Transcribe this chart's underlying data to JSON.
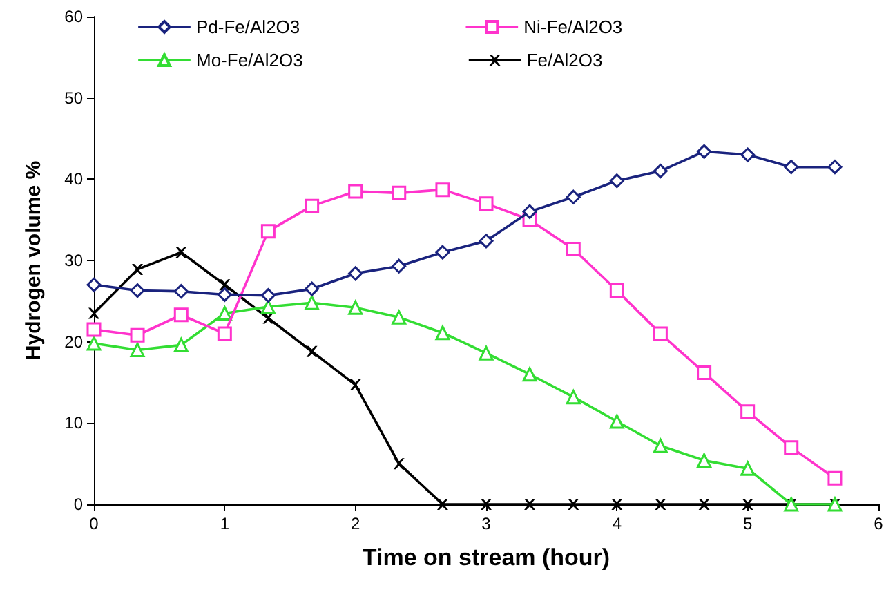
{
  "chart_data": {
    "type": "line",
    "xlabel": "Time on stream (hour)",
    "ylabel": "Hydrogen volume %",
    "x": [
      0,
      0.333,
      0.667,
      1,
      1.333,
      1.667,
      2,
      2.333,
      2.667,
      3,
      3.333,
      3.667,
      4,
      4.333,
      4.667,
      5,
      5.333,
      5.667
    ],
    "xlim": [
      0,
      6
    ],
    "xticks": [
      0,
      1,
      2,
      3,
      4,
      5,
      6
    ],
    "ylim": [
      0,
      60
    ],
    "yticks": [
      0,
      10,
      20,
      30,
      40,
      50,
      60
    ],
    "grid": false,
    "legend": "top",
    "series": [
      {
        "name": "Pd-Fe/Al2O3",
        "color": "#1a237e",
        "marker": "diamond",
        "values": [
          27,
          26.3,
          26.2,
          25.8,
          25.7,
          26.5,
          28.4,
          29.3,
          31,
          32.4,
          36,
          37.8,
          39.8,
          41,
          43.4,
          43,
          41.5,
          41.5
        ]
      },
      {
        "name": "Ni-Fe/Al2O3",
        "color": "#ff33cc",
        "marker": "square",
        "values": [
          21.5,
          20.8,
          23.3,
          21,
          33.6,
          36.7,
          38.5,
          38.3,
          38.7,
          37,
          35,
          31.4,
          26.3,
          21,
          16.2,
          11.4,
          7,
          3.2
        ]
      },
      {
        "name": "Mo-Fe/Al2O3",
        "color": "#33dd33",
        "marker": "triangle",
        "values": [
          19.8,
          19,
          19.6,
          23.5,
          24.3,
          24.8,
          24.2,
          23,
          21.1,
          18.6,
          16,
          13.2,
          10.2,
          7.2,
          5.4,
          4.4,
          0,
          0
        ]
      },
      {
        "name": "Fe/Al2O3",
        "color": "#000000",
        "marker": "cross",
        "values": [
          23.5,
          28.9,
          31,
          27,
          22.9,
          18.8,
          14.7,
          5,
          0,
          0,
          0,
          0,
          0,
          0,
          0,
          0,
          0,
          0
        ]
      }
    ]
  }
}
